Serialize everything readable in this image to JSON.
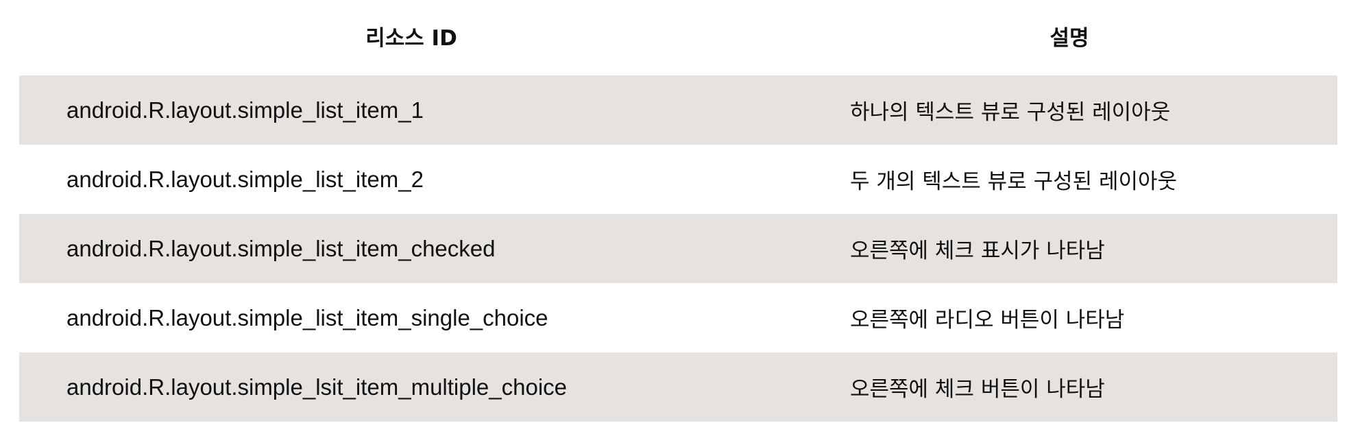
{
  "table": {
    "headers": {
      "resource_id": "리소스 ID",
      "description": "설명"
    },
    "rows": [
      {
        "resource_id": "android.R.layout.simple_list_item_1",
        "description": "하나의 텍스트 뷰로 구성된 레이아웃"
      },
      {
        "resource_id": "android.R.layout.simple_list_item_2",
        "description": "두 개의 텍스트 뷰로 구성된 레이아웃"
      },
      {
        "resource_id": "android.R.layout.simple_list_item_checked",
        "description": "오른쪽에 체크 표시가 나타남"
      },
      {
        "resource_id": "android.R.layout.simple_list_item_single_choice",
        "description": "오른쪽에 라디오 버튼이 나타남"
      },
      {
        "resource_id": "android.R.layout.simple_lsit_item_multiple_choice",
        "description": "오른쪽에 체크 버튼이 나타남"
      }
    ]
  }
}
